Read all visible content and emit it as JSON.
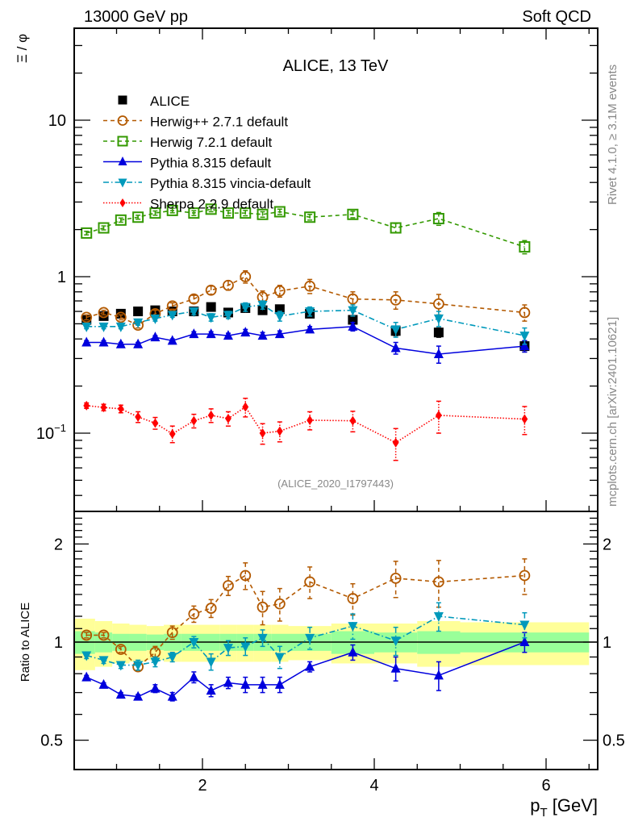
{
  "header": {
    "left": "13000 GeV pp",
    "right": "Soft QCD"
  },
  "side_labels": {
    "rivet": "Rivet 4.1.0, ≥ 3.1M events",
    "mcplots": "mcplots.cern.ch [arXiv:2401.10621]"
  },
  "chart_data": [
    {
      "type": "scatter",
      "panel": "main",
      "title": "ALICE, 13 TeV",
      "analysis_id": "(ALICE_2020_I1797443)",
      "xlabel": "p_T [GeV]",
      "ylabel": "Ξ / φ",
      "yscale": "log",
      "xlim": [
        0.5,
        6.6
      ],
      "ylim": [
        0.032,
        38
      ],
      "yticks": [
        {
          "v": 0.1,
          "label": "10⁻¹"
        },
        {
          "v": 1,
          "label": "1"
        },
        {
          "v": 10,
          "label": "10"
        }
      ],
      "xticks": [
        2,
        4,
        6
      ],
      "legend_position": "top-left",
      "x": [
        0.65,
        0.85,
        1.05,
        1.25,
        1.45,
        1.65,
        1.9,
        2.1,
        2.3,
        2.5,
        2.7,
        2.9,
        3.25,
        3.75,
        4.25,
        4.75,
        5.75
      ],
      "series": [
        {
          "name": "ALICE",
          "color": "#000000",
          "marker": "square",
          "line": "none",
          "values": [
            0.53,
            0.56,
            0.58,
            0.6,
            0.61,
            0.6,
            0.6,
            0.64,
            0.59,
            0.63,
            0.61,
            0.62,
            0.58,
            0.53,
            0.45,
            0.44,
            0.36
          ],
          "errors": [
            0.02,
            0.02,
            0.02,
            0.02,
            0.02,
            0.02,
            0.02,
            0.02,
            0.02,
            0.02,
            0.02,
            0.02,
            0.02,
            0.03,
            0.03,
            0.03,
            0.03
          ]
        },
        {
          "name": "Herwig++ 2.7.1 default",
          "color": "#b35900",
          "marker": "open-circle",
          "line": "dashed",
          "values": [
            0.55,
            0.59,
            0.55,
            0.49,
            0.58,
            0.65,
            0.72,
            0.82,
            0.88,
            1.0,
            0.74,
            0.81,
            0.87,
            0.72,
            0.71,
            0.67,
            0.59
          ],
          "errors": [
            0.02,
            0.02,
            0.02,
            0.02,
            0.03,
            0.03,
            0.04,
            0.05,
            0.06,
            0.09,
            0.07,
            0.07,
            0.09,
            0.08,
            0.09,
            0.1,
            0.07
          ]
        },
        {
          "name": "Herwig 7.2.1 default",
          "color": "#339900",
          "marker": "open-square",
          "line": "dashed",
          "values": [
            1.9,
            2.05,
            2.3,
            2.4,
            2.55,
            2.65,
            2.55,
            2.7,
            2.55,
            2.55,
            2.5,
            2.6,
            2.4,
            2.5,
            2.05,
            2.35,
            1.55
          ],
          "errors": [
            0.05,
            0.06,
            0.07,
            0.07,
            0.08,
            0.09,
            0.09,
            0.1,
            0.1,
            0.1,
            0.1,
            0.1,
            0.1,
            0.12,
            0.14,
            0.22,
            0.15
          ]
        },
        {
          "name": "Pythia 8.315 default",
          "color": "#0000dd",
          "marker": "triangle-up",
          "line": "solid",
          "values": [
            0.38,
            0.38,
            0.37,
            0.37,
            0.41,
            0.39,
            0.43,
            0.43,
            0.42,
            0.44,
            0.42,
            0.43,
            0.46,
            0.48,
            0.35,
            0.32,
            0.36
          ],
          "errors": [
            0.01,
            0.01,
            0.01,
            0.01,
            0.01,
            0.01,
            0.015,
            0.015,
            0.015,
            0.02,
            0.02,
            0.02,
            0.02,
            0.03,
            0.03,
            0.04,
            0.03
          ]
        },
        {
          "name": "Pythia 8.315 vincia-default",
          "color": "#0099bb",
          "marker": "triangle-down",
          "line": "dashdot",
          "values": [
            0.48,
            0.48,
            0.48,
            0.51,
            0.54,
            0.57,
            0.6,
            0.55,
            0.57,
            0.64,
            0.66,
            0.56,
            0.6,
            0.61,
            0.46,
            0.54,
            0.42
          ],
          "errors": [
            0.015,
            0.015,
            0.015,
            0.02,
            0.02,
            0.02,
            0.03,
            0.03,
            0.03,
            0.04,
            0.04,
            0.04,
            0.04,
            0.05,
            0.05,
            0.06,
            0.05
          ]
        },
        {
          "name": "Sherpa 2.2.9 default",
          "color": "#ff0000",
          "marker": "diamond",
          "line": "dotted",
          "values": [
            0.15,
            0.146,
            0.143,
            0.127,
            0.116,
            0.099,
            0.12,
            0.13,
            0.124,
            0.147,
            0.1,
            0.103,
            0.121,
            0.12,
            0.087,
            0.13,
            0.123
          ],
          "errors": [
            0.006,
            0.007,
            0.008,
            0.01,
            0.01,
            0.012,
            0.012,
            0.013,
            0.013,
            0.02,
            0.015,
            0.015,
            0.016,
            0.018,
            0.02,
            0.03,
            0.025
          ]
        }
      ]
    },
    {
      "type": "scatter",
      "panel": "ratio",
      "ylabel": "Ratio to ALICE",
      "xlabel": "p_T [GeV]",
      "yscale": "log",
      "xlim": [
        0.5,
        6.6
      ],
      "ylim": [
        0.41,
        2.5
      ],
      "yticks": [
        {
          "v": 0.5,
          "label": "0.5"
        },
        {
          "v": 1,
          "label": "1"
        },
        {
          "v": 2,
          "label": "2"
        }
      ],
      "xticks": [
        2,
        4,
        6
      ],
      "reference_line": 1,
      "band_colors": {
        "stat": "#99ff99",
        "total": "#ffff99"
      },
      "band_edges": [
        0.5,
        0.75,
        0.95,
        1.15,
        1.35,
        1.55,
        1.75,
        2.0,
        2.2,
        2.4,
        2.6,
        2.8,
        3.0,
        3.5,
        4.0,
        4.5,
        5.0,
        6.5
      ],
      "stat_band": [
        0.08,
        0.07,
        0.06,
        0.06,
        0.055,
        0.06,
        0.06,
        0.06,
        0.06,
        0.06,
        0.06,
        0.06,
        0.06,
        0.08,
        0.07,
        0.08,
        0.07
      ],
      "total_band": [
        0.18,
        0.16,
        0.14,
        0.13,
        0.12,
        0.13,
        0.13,
        0.13,
        0.13,
        0.13,
        0.13,
        0.13,
        0.12,
        0.14,
        0.14,
        0.16,
        0.15
      ],
      "x": [
        0.65,
        0.85,
        1.05,
        1.25,
        1.45,
        1.65,
        1.9,
        2.1,
        2.3,
        2.5,
        2.7,
        2.9,
        3.25,
        3.75,
        4.25,
        4.75,
        5.75
      ],
      "series": [
        {
          "name": "Herwig++ 2.7.1 default",
          "color": "#b35900",
          "marker": "open-circle",
          "line": "dashed",
          "values": [
            1.05,
            1.05,
            0.95,
            0.84,
            0.93,
            1.07,
            1.22,
            1.27,
            1.49,
            1.6,
            1.28,
            1.31,
            1.53,
            1.36,
            1.57,
            1.53,
            1.6
          ],
          "errors": [
            0.02,
            0.02,
            0.02,
            0.02,
            0.04,
            0.05,
            0.07,
            0.08,
            0.1,
            0.15,
            0.15,
            0.15,
            0.17,
            0.15,
            0.2,
            0.25,
            0.2
          ]
        },
        {
          "name": "Pythia 8.315 default",
          "color": "#0000dd",
          "marker": "triangle-up",
          "line": "solid",
          "values": [
            0.78,
            0.74,
            0.69,
            0.68,
            0.72,
            0.68,
            0.78,
            0.71,
            0.75,
            0.74,
            0.74,
            0.74,
            0.84,
            0.93,
            0.83,
            0.79,
            1.0
          ],
          "errors": [
            0.01,
            0.01,
            0.01,
            0.01,
            0.02,
            0.02,
            0.03,
            0.03,
            0.03,
            0.04,
            0.04,
            0.04,
            0.03,
            0.05,
            0.07,
            0.08,
            0.07
          ]
        },
        {
          "name": "Pythia 8.315 vincia-default",
          "color": "#0099bb",
          "marker": "triangle-down",
          "line": "dashdot",
          "values": [
            0.91,
            0.88,
            0.85,
            0.85,
            0.87,
            0.9,
            1.0,
            0.87,
            0.96,
            0.97,
            1.03,
            0.9,
            1.03,
            1.12,
            1.01,
            1.2,
            1.13
          ],
          "errors": [
            0.02,
            0.02,
            0.02,
            0.03,
            0.03,
            0.03,
            0.04,
            0.05,
            0.05,
            0.06,
            0.06,
            0.07,
            0.08,
            0.1,
            0.1,
            0.12,
            0.1
          ]
        }
      ]
    }
  ]
}
